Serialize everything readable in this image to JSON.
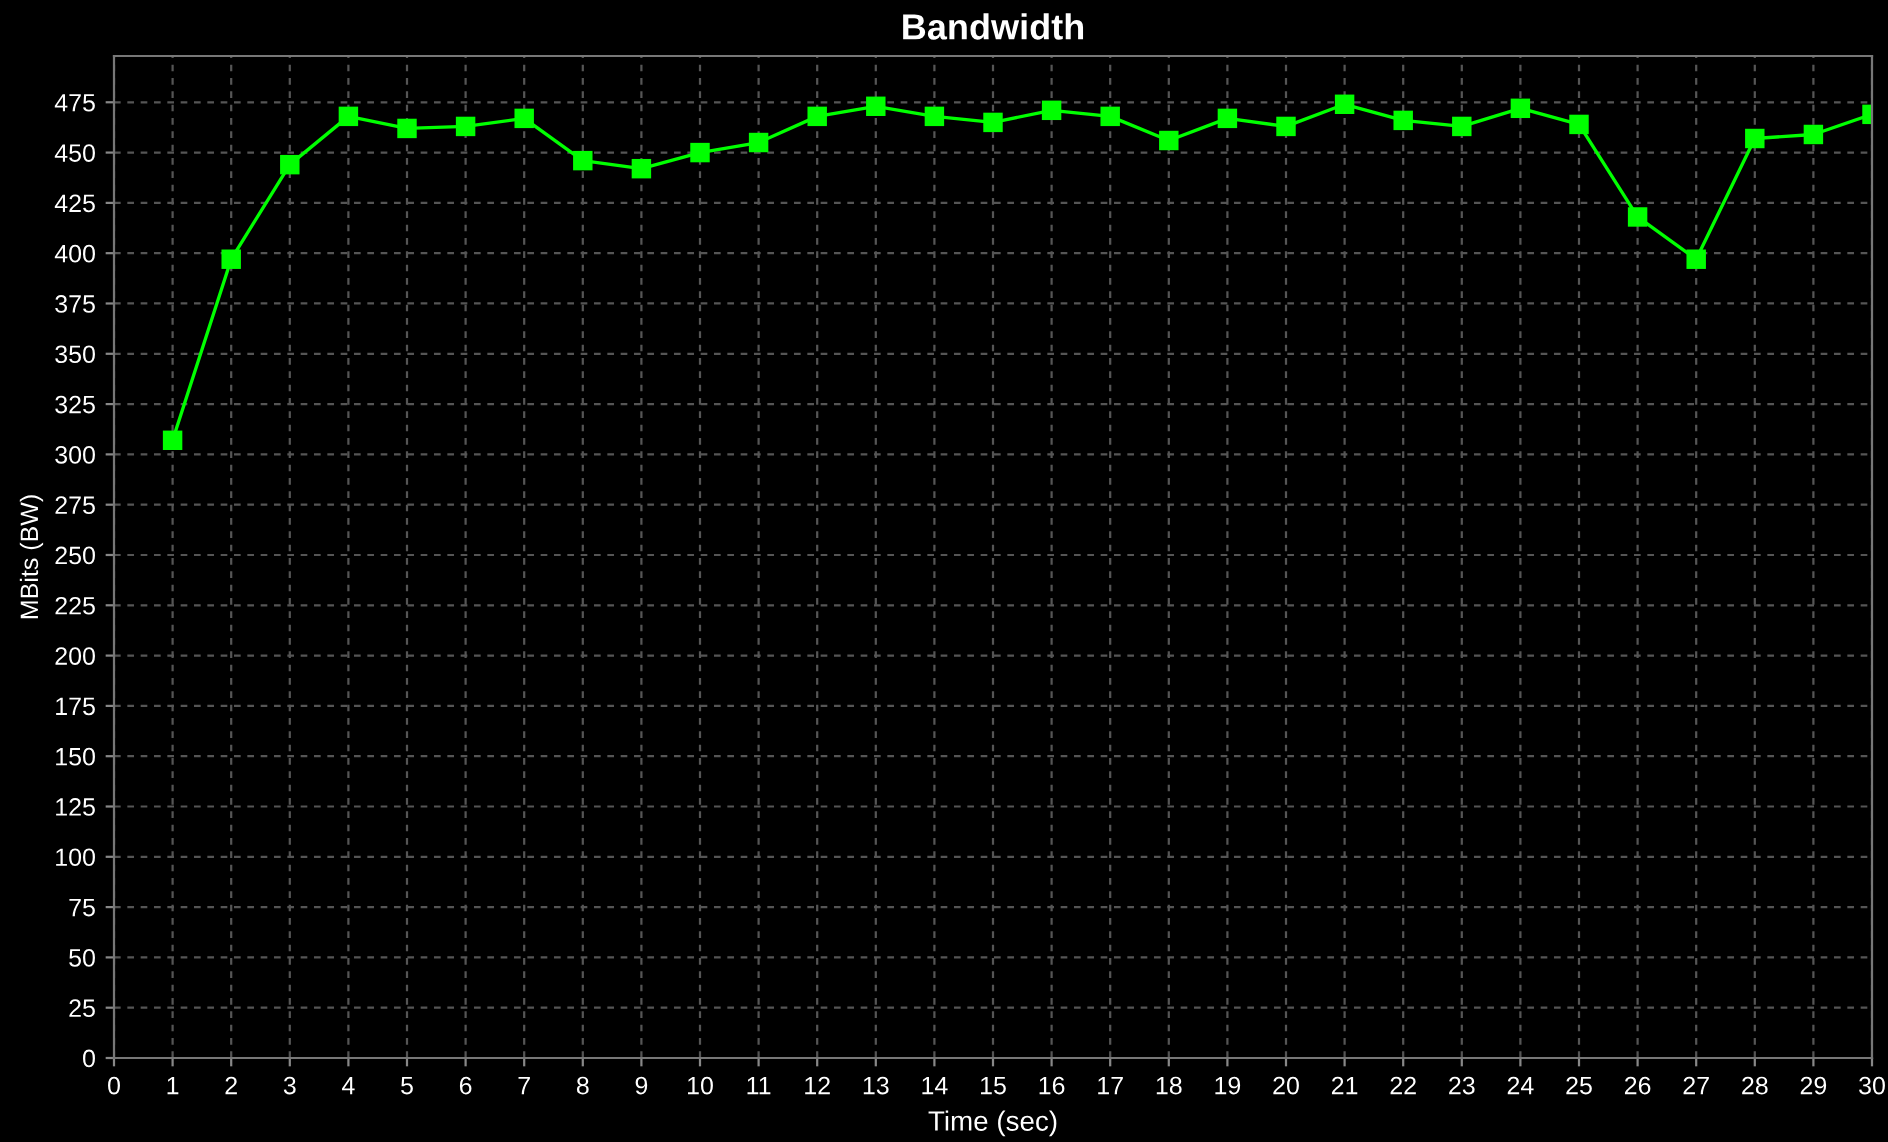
{
  "chart_data": {
    "type": "line",
    "title": "Bandwidth",
    "xlabel": "Time (sec)",
    "ylabel": "MBits (BW)",
    "x": [
      1,
      2,
      3,
      4,
      5,
      6,
      7,
      8,
      9,
      10,
      11,
      12,
      13,
      14,
      15,
      16,
      17,
      18,
      19,
      20,
      21,
      22,
      23,
      24,
      25,
      26,
      27,
      28,
      29,
      30
    ],
    "series": [
      {
        "color": "#00ff00",
        "values": [
          307,
          397,
          444,
          468,
          462,
          463,
          467,
          446,
          442,
          450,
          455,
          468,
          473,
          468,
          465,
          471,
          468,
          456,
          467,
          463,
          474,
          466,
          463,
          472,
          464,
          418,
          397,
          457,
          459,
          469
        ]
      }
    ],
    "xlim": [
      0,
      30
    ],
    "xticks": [
      0,
      1,
      2,
      3,
      4,
      5,
      6,
      7,
      8,
      9,
      10,
      11,
      12,
      13,
      14,
      15,
      16,
      17,
      18,
      19,
      20,
      21,
      22,
      23,
      24,
      25,
      26,
      27,
      28,
      29,
      30
    ],
    "ylim": [
      0,
      498
    ],
    "yticks": [
      0,
      25,
      50,
      75,
      100,
      125,
      150,
      175,
      200,
      225,
      250,
      275,
      300,
      325,
      350,
      375,
      400,
      425,
      450,
      475
    ],
    "grid": true,
    "marker": "square",
    "line_style": "solid",
    "legend": false
  }
}
